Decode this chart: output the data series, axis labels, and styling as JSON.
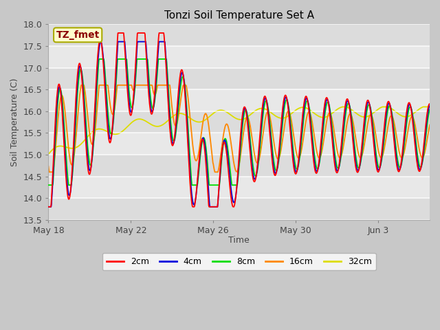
{
  "title": "Tonzi Soil Temperature Set A",
  "xlabel": "Time",
  "ylabel": "Soil Temperature (C)",
  "ylim": [
    13.5,
    18.0
  ],
  "annotation_text": "TZ_fmet",
  "annotation_color": "#8B0000",
  "annotation_bg": "#FFFFCC",
  "annotation_border": "#AAAA00",
  "colors": {
    "2cm": "#FF0000",
    "4cm": "#0000DD",
    "8cm": "#00DD00",
    "16cm": "#FF8800",
    "32cm": "#DDDD00"
  },
  "x_tick_labels": [
    "May 18",
    "May 22",
    "May 26",
    "May 30",
    "Jun 3"
  ],
  "x_tick_positions": [
    0,
    4,
    8,
    12,
    16
  ]
}
